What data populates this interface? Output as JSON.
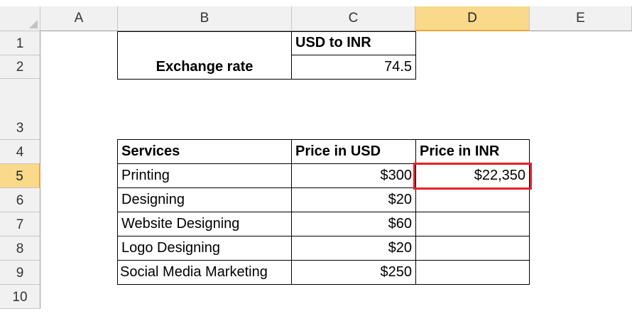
{
  "columns": [
    "A",
    "B",
    "C",
    "D",
    "E"
  ],
  "rows": [
    "1",
    "2",
    "3",
    "4",
    "5",
    "6",
    "7",
    "8",
    "9",
    "10"
  ],
  "selected_cell": {
    "column": "D",
    "row": "5"
  },
  "colors": {
    "selection_border": "#e1232b",
    "header_selected": "#f9d98a",
    "header_selected_accent": "#f2a23b"
  },
  "exchange": {
    "header": "USD to INR",
    "label": "Exchange rate",
    "rate": "74.5"
  },
  "table": {
    "headers": [
      "Services",
      "Price in USD",
      "Price in INR"
    ],
    "rows": [
      {
        "service": "Printing",
        "usd": "$300",
        "inr": "$22,350"
      },
      {
        "service": "Designing",
        "usd": "$20",
        "inr": ""
      },
      {
        "service": "Website Designing",
        "usd": "$60",
        "inr": ""
      },
      {
        "service": "Logo Designing",
        "usd": "$20",
        "inr": ""
      },
      {
        "service": "Social Media Marketing",
        "usd": "$250",
        "inr": ""
      }
    ]
  }
}
